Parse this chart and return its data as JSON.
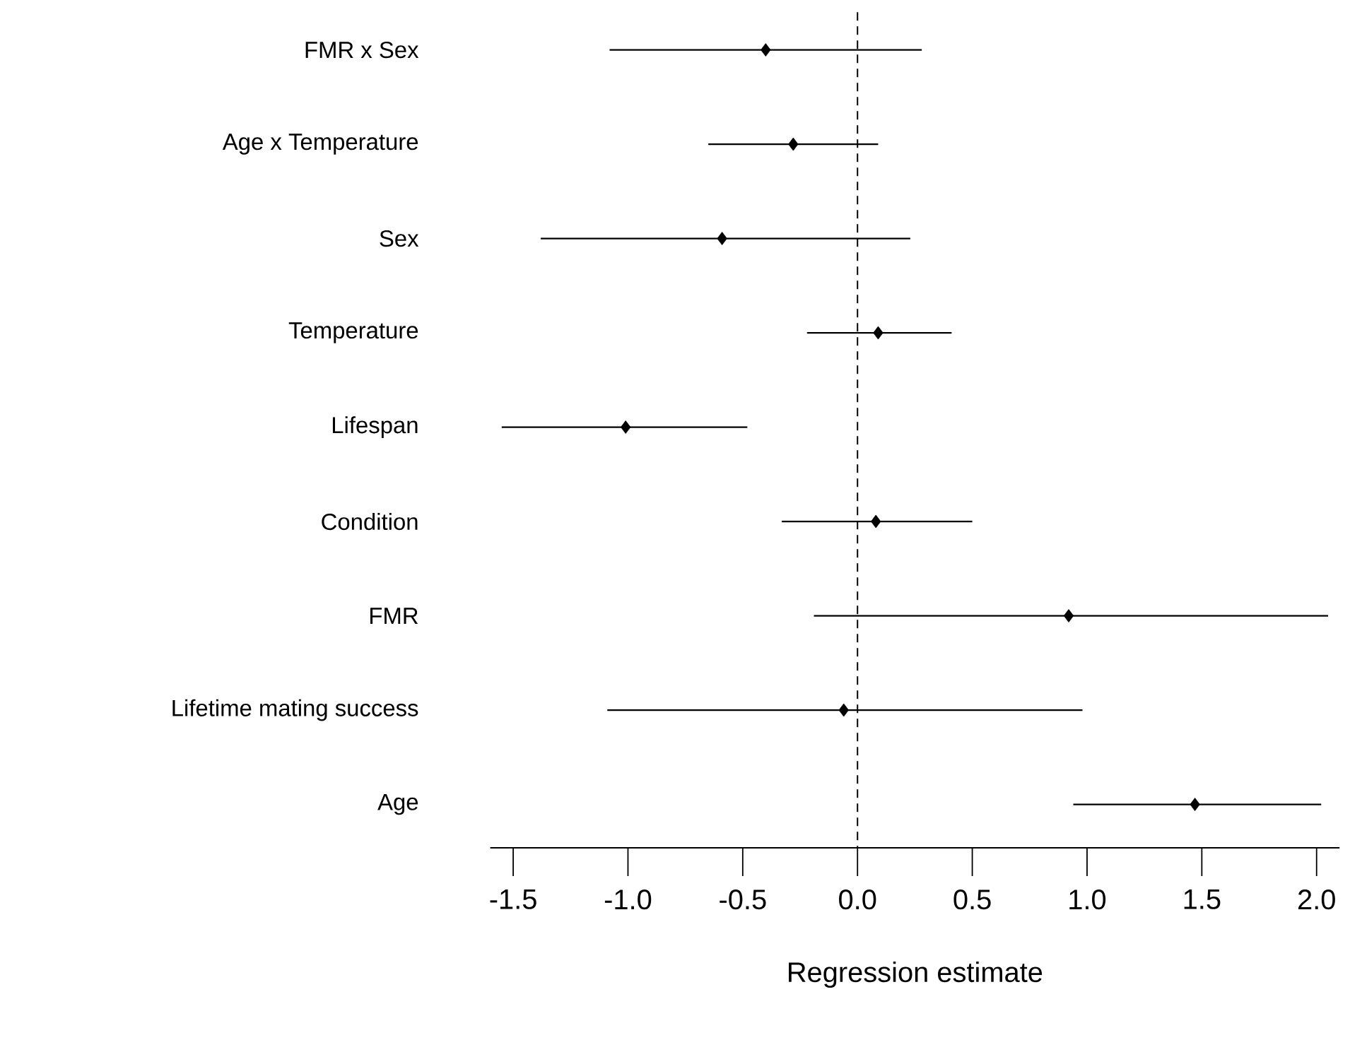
{
  "chart_data": {
    "type": "scatter",
    "orientation": "horizontal",
    "xlabel": "Regression estimate",
    "categories": [
      "FMR x Sex",
      "Age x Temperature",
      "Sex",
      "Temperature",
      "Lifespan",
      "Condition",
      "FMR",
      "Lifetime mating success",
      "Age"
    ],
    "values": [
      -0.4,
      -0.28,
      -0.59,
      0.09,
      -1.01,
      0.08,
      0.92,
      -0.06,
      1.47
    ],
    "errors": [
      [
        -1.08,
        0.28
      ],
      [
        -0.65,
        0.09
      ],
      [
        -1.38,
        0.23
      ],
      [
        -0.22,
        0.41
      ],
      [
        -1.55,
        -0.48
      ],
      [
        -0.33,
        0.5
      ],
      [
        -0.19,
        2.05
      ],
      [
        -1.09,
        0.98
      ],
      [
        0.94,
        2.02
      ]
    ],
    "color": "#000000",
    "marker": "diamond",
    "grid": false,
    "xlim": [
      -1.6,
      2.1
    ],
    "xticks": [
      {
        "value": -1.5,
        "label": "-1.5"
      },
      {
        "value": -1.0,
        "label": "-1.0"
      },
      {
        "value": -0.5,
        "label": "-0.5"
      },
      {
        "value": 0,
        "label": "0.0"
      },
      {
        "value": 0.5,
        "label": "0.5"
      },
      {
        "value": 1.0,
        "label": "1.0"
      },
      {
        "value": 1.5,
        "label": "1.5"
      },
      {
        "value": 2.0,
        "label": "2.0"
      }
    ],
    "ref_lines": [
      {
        "axis": "x",
        "value": 0,
        "line_style": "dashed",
        "color": "#000000"
      }
    ]
  }
}
